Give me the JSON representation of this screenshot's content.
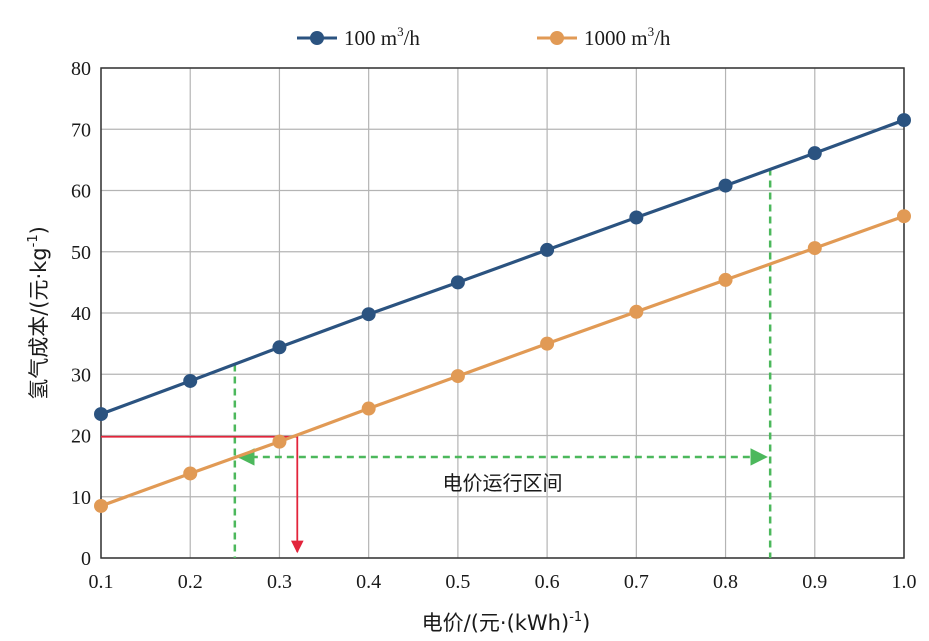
{
  "chart_data": {
    "type": "line",
    "x": [
      0.1,
      0.2,
      0.3,
      0.4,
      0.5,
      0.6,
      0.7,
      0.8,
      0.9,
      1.0
    ],
    "x_tick_labels": [
      "0.1",
      "0.2",
      "0.3",
      "0.4",
      "0.5",
      "0.6",
      "0.7",
      "0.8",
      "0.9",
      "1.0"
    ],
    "y_tick_labels": [
      "0",
      "10",
      "20",
      "30",
      "40",
      "50",
      "60",
      "70",
      "80"
    ],
    "xlim": [
      0.1,
      1.0
    ],
    "ylim": [
      0,
      80
    ],
    "grid": true,
    "legend_placement": "top-center",
    "xlabel": "电价/(元·(kWh)-1)",
    "ylabel": "氢气成本/(元·kg-1)",
    "series": [
      {
        "name": "100 m3/h",
        "color": "#2b5380",
        "values": [
          23.5,
          28.9,
          34.4,
          39.8,
          45.0,
          50.3,
          55.6,
          60.8,
          66.1,
          71.5
        ]
      },
      {
        "name": "1000 m3/h",
        "color": "#e19a55",
        "values": [
          8.5,
          13.8,
          19.0,
          24.4,
          29.7,
          35.0,
          40.2,
          45.4,
          50.6,
          55.8
        ]
      }
    ],
    "annotations": {
      "range_label": "电价运行区间",
      "range_color": "#4cb85c",
      "range_x": [
        0.25,
        0.85
      ],
      "range_y": 16.5,
      "range_left_top_y": 31.6,
      "range_right_top_y": 63.6,
      "marker_color": "#e2243b",
      "marker_cost": 19.8,
      "marker_price": 0.32
    }
  },
  "legend": {
    "items": [
      {
        "base": "100 m",
        "sup": "3",
        "tail": "/h"
      },
      {
        "base": "1000 m",
        "sup": "3",
        "tail": "/h"
      }
    ]
  },
  "axes": {
    "y_title_base": "氢气成本/(元·kg",
    "y_title_sup": "-1",
    "y_title_tail": ")",
    "x_title_base": "电价/(元·(kWh)",
    "x_title_sup": "-1",
    "x_title_tail": ")"
  }
}
